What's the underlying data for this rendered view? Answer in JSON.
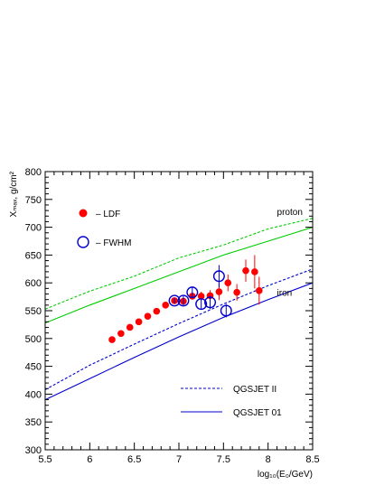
{
  "chart_data": {
    "type": "scatter",
    "xlabel": "log₁₀(E₀/GeV)",
    "ylabel": "Xₘₐₓ, g/cm²",
    "xlim": [
      5.5,
      8.5
    ],
    "ylim": [
      300,
      800
    ],
    "xticks": [
      5.5,
      6,
      6.5,
      7,
      7.5,
      8,
      8.5
    ],
    "xtick_labels": [
      "5.5",
      "6",
      "6.5",
      "7",
      "7.5",
      "8",
      "8.5"
    ],
    "yticks": [
      300,
      350,
      400,
      450,
      500,
      550,
      600,
      650,
      700,
      750,
      800
    ],
    "ytick_labels": [
      "300",
      "350",
      "400",
      "450",
      "500",
      "550",
      "600",
      "650",
      "700",
      "750",
      "800"
    ],
    "grid": false,
    "series": [
      {
        "name": "LDF",
        "kind": "points",
        "marker": "filled-circle",
        "color": "#ff0000",
        "x": [
          6.25,
          6.35,
          6.45,
          6.55,
          6.65,
          6.75,
          6.85,
          6.95,
          7.05,
          7.15,
          7.25,
          7.35,
          7.45,
          7.55,
          7.65,
          7.75,
          7.85,
          7.9
        ],
        "y": [
          498,
          509,
          520,
          530,
          540,
          549,
          560,
          568,
          567,
          576,
          576,
          577,
          584,
          600,
          583,
          622,
          620,
          586
        ],
        "yerr": [
          0,
          0,
          0,
          0,
          0,
          0,
          0,
          0,
          0,
          5,
          8,
          10,
          15,
          15,
          15,
          20,
          30,
          25
        ]
      },
      {
        "name": "FWHM",
        "kind": "points",
        "marker": "open-circle",
        "color": "#0000cc",
        "x": [
          6.95,
          7.05,
          7.15,
          7.25,
          7.35,
          7.45,
          7.53
        ],
        "y": [
          568,
          568,
          583,
          562,
          565,
          612,
          550
        ],
        "yerr": [
          5,
          8,
          10,
          10,
          12,
          20,
          12
        ]
      },
      {
        "name": "QGSJET II",
        "kind": "line",
        "dash": "dotted",
        "color": "#00cc00",
        "x": [
          5.5,
          6.0,
          6.5,
          7.0,
          7.5,
          8.0,
          8.5
        ],
        "y": [
          553,
          585,
          612,
          645,
          668,
          697,
          716
        ]
      },
      {
        "name": "QGSJET 01",
        "kind": "line",
        "dash": "solid",
        "color": "#00cc00",
        "x": [
          5.5,
          6.0,
          6.5,
          7.0,
          7.5,
          8.0,
          8.5
        ],
        "y": [
          528,
          560,
          590,
          620,
          650,
          675,
          700
        ]
      },
      {
        "name": "QGSJET II",
        "kind": "line",
        "dash": "dotted",
        "color": "#0000cc",
        "x": [
          5.5,
          6.0,
          6.5,
          7.0,
          7.5,
          8.0,
          8.5
        ],
        "y": [
          408,
          452,
          490,
          527,
          562,
          595,
          625
        ]
      },
      {
        "name": "QGSJET 01",
        "kind": "line",
        "dash": "solid",
        "color": "#0000cc",
        "x": [
          5.5,
          6.0,
          6.5,
          7.0,
          7.5,
          8.0,
          8.5
        ],
        "y": [
          390,
          428,
          466,
          503,
          538,
          570,
          600
        ]
      }
    ],
    "legend": [
      {
        "marker": "filled-circle",
        "color": "#ff0000",
        "label": "– LDF"
      },
      {
        "marker": "open-circle",
        "color": "#0000cc",
        "label": "– FWHM"
      },
      {
        "marker": "dotted-line",
        "color": "#0000cc",
        "label": "QGSJET II"
      },
      {
        "marker": "solid-line",
        "color": "#0000cc",
        "label": "QGSJET 01"
      }
    ],
    "annotations": [
      {
        "text": "proton",
        "x": 8.1,
        "y": 722
      },
      {
        "text": "iron",
        "x": 8.1,
        "y": 577
      }
    ]
  }
}
